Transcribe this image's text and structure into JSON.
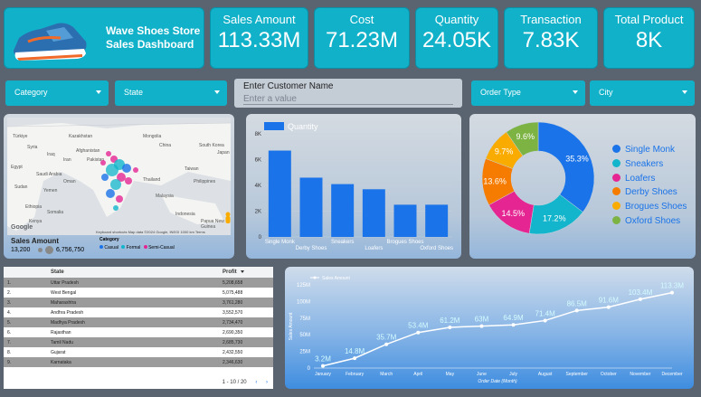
{
  "header": {
    "title_line1": "Wave Shoes Store",
    "title_line2": "Sales Dashboard"
  },
  "kpis": [
    {
      "label": "Sales Amount",
      "value": "113.33M"
    },
    {
      "label": "Cost",
      "value": "71.23M"
    },
    {
      "label": "Quantity",
      "value": "24.05K"
    },
    {
      "label": "Transaction",
      "value": "7.83K"
    },
    {
      "label": "Total Product",
      "value": "8K"
    }
  ],
  "filters": {
    "category": "Category",
    "state": "State",
    "customer_label": "Enter Customer Name",
    "customer_placeholder": "Enter a value",
    "order_type": "Order Type",
    "city": "City"
  },
  "map": {
    "places": [
      "Türkiye",
      "Syria",
      "Iraq",
      "Afghanistan",
      "Iran",
      "Pakistan",
      "Egypt",
      "Saudi Arabia",
      "Oman",
      "Sudan",
      "Yemen",
      "Ethiopia",
      "Somalia",
      "Kenya",
      "Kazakhstan",
      "Mongolia",
      "China",
      "South Korea",
      "Japan",
      "Taiwan",
      "Thailand",
      "Philippines",
      "Malaysia",
      "Indonesia",
      "Papua New Guinea"
    ],
    "legend_title": "Sales Amount",
    "legend_min": "13,200",
    "legend_max": "6,756,750",
    "category_title": "Category",
    "categories": [
      "Casual",
      "Formal",
      "Semi-Casual"
    ],
    "footer": "Keyboard shortcuts   Map data ©2024 Google, INEGI   1000 km   Terms",
    "google": "Google"
  },
  "bar_chart": {
    "chart_data": {
      "type": "bar",
      "title": "Quantity",
      "categories": [
        "Single Monk",
        "Derby Shoes",
        "Sneakers",
        "Loafers",
        "Brogues Shoes",
        "Oxford Shoes"
      ],
      "values": [
        6700,
        4600,
        4100,
        3700,
        2500,
        2500
      ],
      "ylim": [
        0,
        8000
      ],
      "yticks": [
        "0",
        "2K",
        "4K",
        "6K",
        "8K"
      ],
      "color": "#1a73e8"
    }
  },
  "pie_chart": {
    "chart_data": {
      "type": "pie",
      "categories": [
        "Single Monk",
        "Sneakers",
        "Loafers",
        "Derby Shoes",
        "Brogues Shoes",
        "Oxford Shoes"
      ],
      "values": [
        35.3,
        17.2,
        14.5,
        13.6,
        9.7,
        9.6
      ],
      "labels": [
        "35.3%",
        "17.2%",
        "14.5%",
        "13.6%",
        "9.7%",
        "9.6%"
      ],
      "colors": [
        "#1a73e8",
        "#12b5cb",
        "#e52592",
        "#f57c00",
        "#f9ab00",
        "#7cb342"
      ]
    }
  },
  "table": {
    "headers": {
      "state": "State",
      "profit": "Profit"
    },
    "rows": [
      {
        "n": "1.",
        "state": "Uttar Pradesh",
        "profit": "5,208,658"
      },
      {
        "n": "2.",
        "state": "West Bengal",
        "profit": "5,075,488"
      },
      {
        "n": "3.",
        "state": "Maharashtra",
        "profit": "3,761,280"
      },
      {
        "n": "4.",
        "state": "Andhra Pradesh",
        "profit": "3,552,570"
      },
      {
        "n": "5.",
        "state": "Madhya Pradesh",
        "profit": "2,734,470"
      },
      {
        "n": "6.",
        "state": "Rajasthan",
        "profit": "2,690,350"
      },
      {
        "n": "7.",
        "state": "Tamil Nadu",
        "profit": "2,685,730"
      },
      {
        "n": "8.",
        "state": "Gujarat",
        "profit": "2,432,550"
      },
      {
        "n": "9.",
        "state": "Karnataka",
        "profit": "2,346,630"
      }
    ],
    "pager": "1 - 10 / 20"
  },
  "line_chart": {
    "chart_data": {
      "type": "line",
      "legend": "Sales Amount",
      "xlabel": "Order Date (Month)",
      "ylabel": "Sales Amount",
      "categories": [
        "January",
        "February",
        "March",
        "April",
        "May",
        "June",
        "July",
        "August",
        "September",
        "October",
        "November",
        "December"
      ],
      "values": [
        3.2,
        14.8,
        35.7,
        53.4,
        61.2,
        63,
        64.9,
        71.4,
        86.5,
        91.6,
        103.4,
        113.3
      ],
      "labels": [
        "3.2M",
        "14.8M",
        "35.7M",
        "53.4M",
        "61.2M",
        "63M",
        "64.9M",
        "71.4M",
        "86.5M",
        "91.6M",
        "103.4M",
        "113.3M"
      ],
      "ylim": [
        0,
        125
      ],
      "yticks": [
        "0",
        "25M",
        "50M",
        "75M",
        "100M",
        "125M"
      ]
    }
  }
}
